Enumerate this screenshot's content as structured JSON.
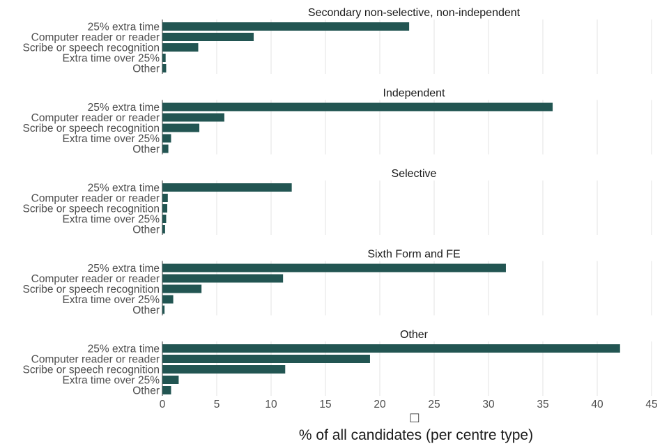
{
  "chart_data": {
    "type": "bar",
    "orientation": "horizontal",
    "facet_by": "centre type",
    "categories": [
      "25% extra time",
      "Computer reader or reader",
      "Scribe or speech recognition",
      "Extra time over 25%",
      "Other"
    ],
    "panels": [
      {
        "title": "Secondary non-selective, non-independent",
        "values": [
          22.7,
          8.4,
          3.3,
          0.3,
          0.35
        ]
      },
      {
        "title": "Independent",
        "values": [
          35.9,
          5.7,
          3.4,
          0.8,
          0.55
        ]
      },
      {
        "title": "Selective",
        "values": [
          11.9,
          0.5,
          0.45,
          0.35,
          0.25
        ]
      },
      {
        "title": "Sixth Form and FE",
        "values": [
          31.6,
          11.1,
          3.6,
          1.0,
          0.2
        ]
      },
      {
        "title": "Other",
        "values": [
          42.1,
          19.1,
          11.3,
          1.5,
          0.8
        ]
      }
    ],
    "x_ticks": [
      0,
      5,
      10,
      15,
      20,
      25,
      30,
      35,
      40,
      45
    ],
    "xlim": [
      0,
      45
    ],
    "xlabel": "% of all candidates (per centre type)",
    "xlabel_glyph": "□",
    "bar_color": "#225552",
    "grid": true
  }
}
